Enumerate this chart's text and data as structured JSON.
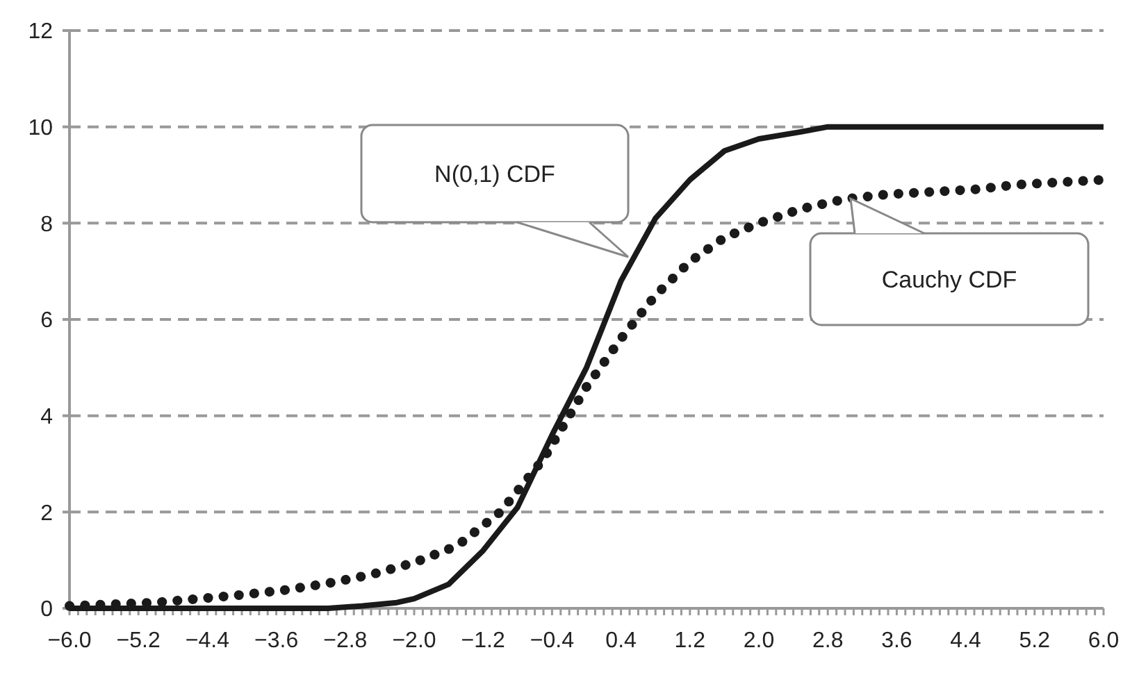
{
  "chart_data": {
    "type": "line",
    "xlim": [
      -6,
      6
    ],
    "ylim": [
      0,
      12
    ],
    "xticks": [
      {
        "value": -6,
        "label": "−6.0"
      },
      {
        "value": -5.2,
        "label": "−5.2"
      },
      {
        "value": -4.4,
        "label": "−4.4"
      },
      {
        "value": -3.6,
        "label": "−3.6"
      },
      {
        "value": -2.8,
        "label": "−2.8"
      },
      {
        "value": -2,
        "label": "−2.0"
      },
      {
        "value": -1.2,
        "label": "−1.2"
      },
      {
        "value": -0.4,
        "label": "−0.4"
      },
      {
        "value": 0.4,
        "label": "0.4"
      },
      {
        "value": 1.2,
        "label": "1.2"
      },
      {
        "value": 2,
        "label": "2.0"
      },
      {
        "value": 2.8,
        "label": "2.8"
      },
      {
        "value": 3.6,
        "label": "3.6"
      },
      {
        "value": 4.4,
        "label": "4.4"
      },
      {
        "value": 5.2,
        "label": "5.2"
      },
      {
        "value": 6,
        "label": "6.0"
      }
    ],
    "yticks": [
      0,
      2,
      4,
      6,
      8,
      10,
      12
    ],
    "grid": "y",
    "series": [
      {
        "color": "#1a1a1a",
        "line_style": "solid",
        "x": [
          -6,
          -3,
          -2.6,
          -2.2,
          -2,
          -1.6,
          -1.2,
          -0.8,
          -0.4,
          0,
          0.4,
          0.8,
          1.2,
          1.6,
          2,
          2.5,
          2.8,
          6
        ],
        "values": [
          0,
          0,
          0.05,
          0.12,
          0.2,
          0.5,
          1.2,
          2.1,
          3.6,
          5.0,
          6.8,
          8.1,
          8.9,
          9.5,
          9.75,
          9.9,
          10,
          10
        ]
      },
      {
        "color": "#1a1a1a",
        "line_style": "dotted",
        "x": [
          -6,
          -5,
          -4.5,
          -4,
          -3.5,
          -3,
          -2.5,
          -2,
          -1.5,
          -1,
          -0.5,
          0,
          0.4,
          0.8,
          1.2,
          1.6,
          2,
          2.5,
          3,
          3.5,
          4,
          4.5,
          5,
          5.5,
          6
        ],
        "values": [
          0.05,
          0.12,
          0.2,
          0.28,
          0.38,
          0.52,
          0.7,
          0.95,
          1.3,
          2.0,
          3.1,
          4.6,
          5.6,
          6.5,
          7.2,
          7.7,
          8.0,
          8.3,
          8.5,
          8.6,
          8.65,
          8.7,
          8.8,
          8.85,
          8.9
        ]
      }
    ],
    "annotations": [
      "N(0,1) CDF",
      "Cauchy CDF"
    ]
  }
}
